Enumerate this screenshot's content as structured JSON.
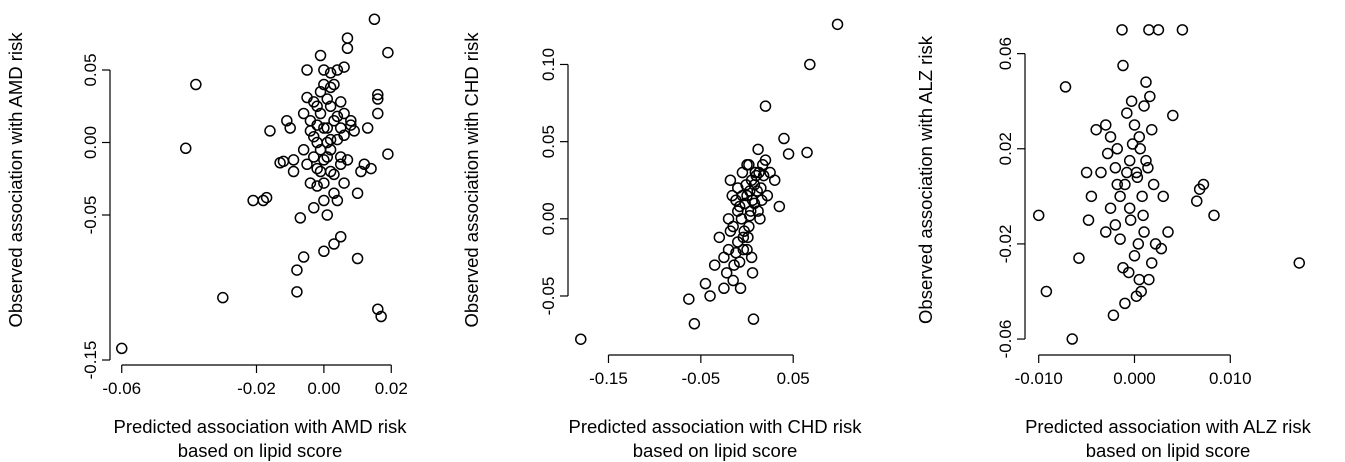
{
  "chart_data": [
    {
      "type": "scatter",
      "xlabel": [
        "Predicted association with AMD risk",
        "based on lipid score"
      ],
      "ylabel": "Observed association with AMD risk",
      "xlim": [
        -0.062,
        0.022
      ],
      "ylim": [
        -0.15,
        0.09
      ],
      "xticks": [
        -0.06,
        -0.02,
        0.0,
        0.02
      ],
      "xtick_labels": [
        "-0.06",
        "-0.02",
        "0.00",
        "0.02"
      ],
      "yticks": [
        -0.15,
        -0.05,
        0.0,
        0.05
      ],
      "ytick_labels": [
        "-0.15",
        "-0.05",
        "0.00",
        "0.05"
      ],
      "points": [
        [
          -0.06,
          -0.142
        ],
        [
          -0.038,
          0.04
        ],
        [
          -0.041,
          -0.004
        ],
        [
          -0.03,
          -0.107
        ],
        [
          -0.021,
          -0.04
        ],
        [
          -0.018,
          -0.04
        ],
        [
          -0.017,
          -0.038
        ],
        [
          -0.016,
          0.008
        ],
        [
          -0.013,
          -0.014
        ],
        [
          -0.012,
          -0.013
        ],
        [
          -0.011,
          0.015
        ],
        [
          -0.01,
          0.01
        ],
        [
          -0.009,
          -0.012
        ],
        [
          -0.009,
          -0.02
        ],
        [
          -0.008,
          -0.088
        ],
        [
          -0.008,
          -0.103
        ],
        [
          -0.007,
          -0.052
        ],
        [
          -0.006,
          0.02
        ],
        [
          -0.006,
          -0.079
        ],
        [
          -0.005,
          0.05
        ],
        [
          -0.005,
          0.031
        ],
        [
          -0.005,
          -0.015
        ],
        [
          -0.004,
          -0.028
        ],
        [
          -0.004,
          0.008
        ],
        [
          -0.003,
          -0.01
        ],
        [
          -0.003,
          0.028
        ],
        [
          -0.003,
          -0.045
        ],
        [
          -0.002,
          0.012
        ],
        [
          -0.002,
          -0.03
        ],
        [
          -0.002,
          0.0
        ],
        [
          -0.001,
          0.06
        ],
        [
          -0.001,
          -0.02
        ],
        [
          -0.001,
          0.02
        ],
        [
          -0.001,
          -0.005
        ],
        [
          0.0,
          0.04
        ],
        [
          0.0,
          -0.012
        ],
        [
          0.0,
          0.05
        ],
        [
          0.0,
          -0.075
        ],
        [
          0.0,
          -0.028
        ],
        [
          0.001,
          0.01
        ],
        [
          0.001,
          0.03
        ],
        [
          0.001,
          -0.01
        ],
        [
          0.001,
          -0.05
        ],
        [
          0.002,
          0.048
        ],
        [
          0.002,
          0.002
        ],
        [
          0.002,
          -0.02
        ],
        [
          0.002,
          0.025
        ],
        [
          0.003,
          0.04
        ],
        [
          0.003,
          -0.035
        ],
        [
          0.003,
          0.015
        ],
        [
          0.003,
          -0.07
        ],
        [
          0.004,
          0.05
        ],
        [
          0.004,
          -0.04
        ],
        [
          0.004,
          0.002
        ],
        [
          0.005,
          0.028
        ],
        [
          0.005,
          -0.065
        ],
        [
          0.005,
          0.01
        ],
        [
          0.005,
          -0.015
        ],
        [
          0.006,
          0.052
        ],
        [
          0.006,
          -0.028
        ],
        [
          0.006,
          0.02
        ],
        [
          0.007,
          0.072
        ],
        [
          0.007,
          0.065
        ],
        [
          0.007,
          -0.012
        ],
        [
          0.008,
          0.012
        ],
        [
          0.008,
          0.015
        ],
        [
          0.009,
          0.008
        ],
        [
          0.01,
          -0.08
        ],
        [
          0.01,
          -0.035
        ],
        [
          0.011,
          -0.02
        ],
        [
          0.012,
          -0.015
        ],
        [
          0.013,
          0.01
        ],
        [
          0.014,
          -0.018
        ],
        [
          0.015,
          0.085
        ],
        [
          0.016,
          0.033
        ],
        [
          0.016,
          0.03
        ],
        [
          0.016,
          0.02
        ],
        [
          0.016,
          -0.115
        ],
        [
          0.017,
          -0.12
        ],
        [
          0.019,
          0.062
        ],
        [
          0.019,
          -0.008
        ],
        [
          -0.004,
          0.015
        ],
        [
          0.002,
          -0.005
        ],
        [
          -0.003,
          0.004
        ],
        [
          0.004,
          0.018
        ],
        [
          0.0,
          0.01
        ],
        [
          -0.002,
          -0.018
        ],
        [
          0.003,
          -0.022
        ],
        [
          -0.001,
          0.035
        ],
        [
          0.001,
          0.0
        ],
        [
          0.005,
          -0.01
        ],
        [
          -0.006,
          -0.005
        ],
        [
          0.006,
          0.005
        ],
        [
          -0.002,
          0.025
        ],
        [
          0.002,
          0.038
        ],
        [
          0.0,
          -0.04
        ]
      ]
    },
    {
      "type": "scatter",
      "xlabel": [
        "Predicted association with CHD risk",
        "based on lipid score"
      ],
      "ylabel": "Observed association with CHD risk",
      "xlim": [
        -0.183,
        0.118
      ],
      "ylim": [
        -0.085,
        0.134
      ],
      "xticks": [
        -0.15,
        -0.05,
        0.05
      ],
      "xtick_labels": [
        "-0.15",
        "-0.05",
        "0.05"
      ],
      "yticks": [
        -0.05,
        0.0,
        0.05,
        0.1
      ],
      "ytick_labels": [
        "-0.05",
        "0.00",
        "0.05",
        "0.10"
      ],
      "points": [
        [
          -0.18,
          -0.078
        ],
        [
          -0.063,
          -0.052
        ],
        [
          -0.057,
          -0.068
        ],
        [
          -0.045,
          -0.042
        ],
        [
          -0.04,
          -0.05
        ],
        [
          -0.035,
          -0.03
        ],
        [
          -0.03,
          -0.012
        ],
        [
          -0.025,
          -0.045
        ],
        [
          -0.022,
          -0.035
        ],
        [
          -0.02,
          -0.02
        ],
        [
          -0.018,
          0.025
        ],
        [
          -0.015,
          -0.005
        ],
        [
          -0.015,
          -0.04
        ],
        [
          -0.012,
          0.012
        ],
        [
          -0.01,
          -0.015
        ],
        [
          -0.01,
          0.02
        ],
        [
          -0.008,
          -0.028
        ],
        [
          -0.006,
          0.0
        ],
        [
          -0.005,
          0.03
        ],
        [
          -0.004,
          -0.012
        ],
        [
          -0.002,
          0.01
        ],
        [
          0.0,
          -0.02
        ],
        [
          0.0,
          0.015
        ],
        [
          0.002,
          0.035
        ],
        [
          0.002,
          -0.005
        ],
        [
          0.004,
          0.005
        ],
        [
          0.005,
          0.025
        ],
        [
          0.006,
          -0.035
        ],
        [
          0.007,
          -0.065
        ],
        [
          0.008,
          0.01
        ],
        [
          0.01,
          0.028
        ],
        [
          0.012,
          0.045
        ],
        [
          0.012,
          0.005
        ],
        [
          0.015,
          0.02
        ],
        [
          0.017,
          0.035
        ],
        [
          0.02,
          0.073
        ],
        [
          0.022,
          0.015
        ],
        [
          0.025,
          0.03
        ],
        [
          0.03,
          0.025
        ],
        [
          0.035,
          0.008
        ],
        [
          0.04,
          0.052
        ],
        [
          0.045,
          0.042
        ],
        [
          0.065,
          0.043
        ],
        [
          0.068,
          0.1
        ],
        [
          0.098,
          0.126
        ],
        [
          -0.008,
          0.008
        ],
        [
          -0.003,
          -0.008
        ],
        [
          0.003,
          0.018
        ],
        [
          -0.012,
          -0.022
        ],
        [
          0.009,
          0.03
        ],
        [
          -0.005,
          0.015
        ],
        [
          0.001,
          -0.012
        ],
        [
          -0.018,
          -0.008
        ],
        [
          0.014,
          0.0
        ],
        [
          -0.02,
          0.0
        ],
        [
          -0.01,
          0.005
        ],
        [
          0.006,
          0.012
        ],
        [
          -0.007,
          -0.045
        ],
        [
          0.018,
          0.028
        ],
        [
          0.02,
          0.038
        ],
        [
          0.003,
          0.002
        ],
        [
          -0.001,
          0.022
        ],
        [
          0.011,
          0.018
        ],
        [
          -0.014,
          -0.03
        ],
        [
          0.005,
          -0.025
        ],
        [
          -0.025,
          -0.025
        ],
        [
          0.0,
          0.035
        ],
        [
          0.016,
          0.012
        ],
        [
          -0.004,
          -0.02
        ],
        [
          0.008,
          0.022
        ],
        [
          -0.016,
          0.015
        ],
        [
          0.013,
          0.03
        ]
      ]
    },
    {
      "type": "scatter",
      "xlabel": [
        "Predicted association with ALZ risk",
        "based on lipid score"
      ],
      "ylabel": "Observed association with ALZ risk",
      "xlim": [
        -0.0107,
        0.0178
      ],
      "ylim": [
        -0.0625,
        0.0775
      ],
      "xticks": [
        -0.01,
        0.0,
        0.01
      ],
      "xtick_labels": [
        "-0.010",
        "0.000",
        "0.010"
      ],
      "yticks": [
        -0.06,
        -0.02,
        0.02,
        0.06
      ],
      "ytick_labels": [
        "-0.06",
        "-0.02",
        "0.02",
        "0.06"
      ],
      "points": [
        [
          -0.01,
          -0.008
        ],
        [
          -0.0092,
          -0.04
        ],
        [
          -0.0072,
          0.046
        ],
        [
          -0.0065,
          -0.06
        ],
        [
          -0.0058,
          -0.026
        ],
        [
          -0.005,
          0.01
        ],
        [
          -0.0048,
          -0.01
        ],
        [
          -0.0045,
          0.0
        ],
        [
          -0.004,
          0.028
        ],
        [
          -0.0035,
          0.01
        ],
        [
          -0.003,
          -0.015
        ],
        [
          -0.003,
          0.03
        ],
        [
          -0.0028,
          0.018
        ],
        [
          -0.0025,
          -0.005
        ],
        [
          -0.0022,
          -0.05
        ],
        [
          -0.002,
          0.012
        ],
        [
          -0.0018,
          0.02
        ],
        [
          -0.0015,
          -0.018
        ],
        [
          -0.0013,
          0.07
        ],
        [
          -0.0012,
          0.055
        ],
        [
          -0.001,
          -0.045
        ],
        [
          -0.001,
          0.005
        ],
        [
          -0.0008,
          0.035
        ],
        [
          -0.0006,
          -0.032
        ],
        [
          -0.0005,
          0.015
        ],
        [
          -0.0004,
          -0.01
        ],
        [
          -0.0002,
          0.022
        ],
        [
          0.0,
          0.03
        ],
        [
          0.0,
          -0.025
        ],
        [
          0.0002,
          0.01
        ],
        [
          0.0003,
          0.008
        ],
        [
          0.0005,
          -0.035
        ],
        [
          0.0006,
          0.02
        ],
        [
          0.0007,
          -0.04
        ],
        [
          0.0008,
          0.0
        ],
        [
          0.001,
          0.038
        ],
        [
          0.001,
          -0.015
        ],
        [
          0.0012,
          0.048
        ],
        [
          0.0014,
          0.012
        ],
        [
          0.0015,
          0.07
        ],
        [
          0.0016,
          0.042
        ],
        [
          0.0018,
          -0.028
        ],
        [
          0.002,
          0.005
        ],
        [
          0.0022,
          -0.02
        ],
        [
          0.0025,
          0.07
        ],
        [
          0.0028,
          -0.022
        ],
        [
          0.003,
          0.0
        ],
        [
          0.0035,
          -0.015
        ],
        [
          0.004,
          0.034
        ],
        [
          0.005,
          0.07
        ],
        [
          0.0065,
          -0.002
        ],
        [
          0.0068,
          0.003
        ],
        [
          0.0072,
          0.005
        ],
        [
          0.0083,
          -0.008
        ],
        [
          0.0172,
          -0.028
        ],
        [
          -0.0025,
          0.025
        ],
        [
          -0.0015,
          0.0
        ],
        [
          -0.0005,
          -0.005
        ],
        [
          0.0005,
          0.025
        ],
        [
          -0.0003,
          0.04
        ],
        [
          0.0004,
          -0.02
        ],
        [
          -0.0012,
          -0.03
        ],
        [
          0.0012,
          0.015
        ],
        [
          -0.002,
          -0.012
        ],
        [
          0.0018,
          0.028
        ],
        [
          -0.0008,
          0.01
        ],
        [
          0.0009,
          -0.008
        ],
        [
          -0.0018,
          0.005
        ],
        [
          0.0002,
          -0.042
        ],
        [
          0.0015,
          -0.035
        ]
      ]
    }
  ]
}
